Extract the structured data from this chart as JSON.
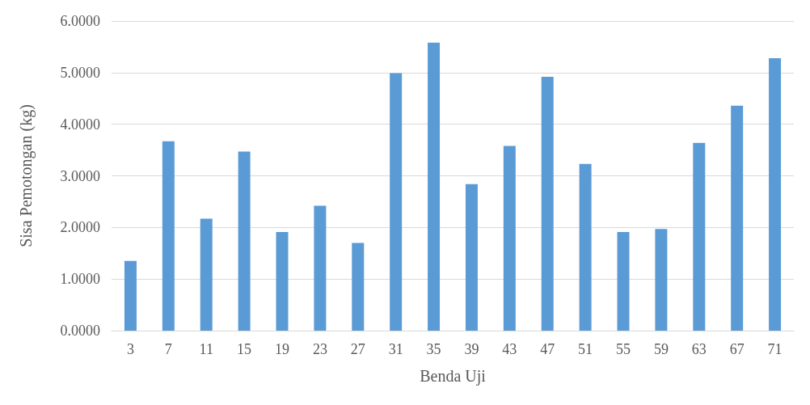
{
  "chart_data": {
    "type": "bar",
    "xlabel": "Benda Uji",
    "ylabel": "Sisa Pemotongan (kg)",
    "categories": [
      "3",
      "7",
      "11",
      "15",
      "19",
      "23",
      "27",
      "31",
      "35",
      "39",
      "43",
      "47",
      "51",
      "55",
      "59",
      "63",
      "67",
      "71"
    ],
    "values": [
      1.35,
      3.67,
      2.17,
      3.47,
      1.91,
      2.42,
      1.7,
      4.99,
      5.58,
      2.84,
      3.58,
      4.92,
      3.23,
      1.91,
      1.97,
      3.64,
      4.36,
      5.28
    ],
    "color": "#5b9bd5",
    "ylim": [
      0,
      6
    ],
    "yticks": [
      {
        "value": 0,
        "label": "0.0000"
      },
      {
        "value": 1,
        "label": "1.0000"
      },
      {
        "value": 2,
        "label": "2.0000"
      },
      {
        "value": 3,
        "label": "3.0000"
      },
      {
        "value": 4,
        "label": "4.0000"
      },
      {
        "value": 5,
        "label": "5.0000"
      },
      {
        "value": 6,
        "label": "6.0000"
      }
    ],
    "grid": "y"
  }
}
